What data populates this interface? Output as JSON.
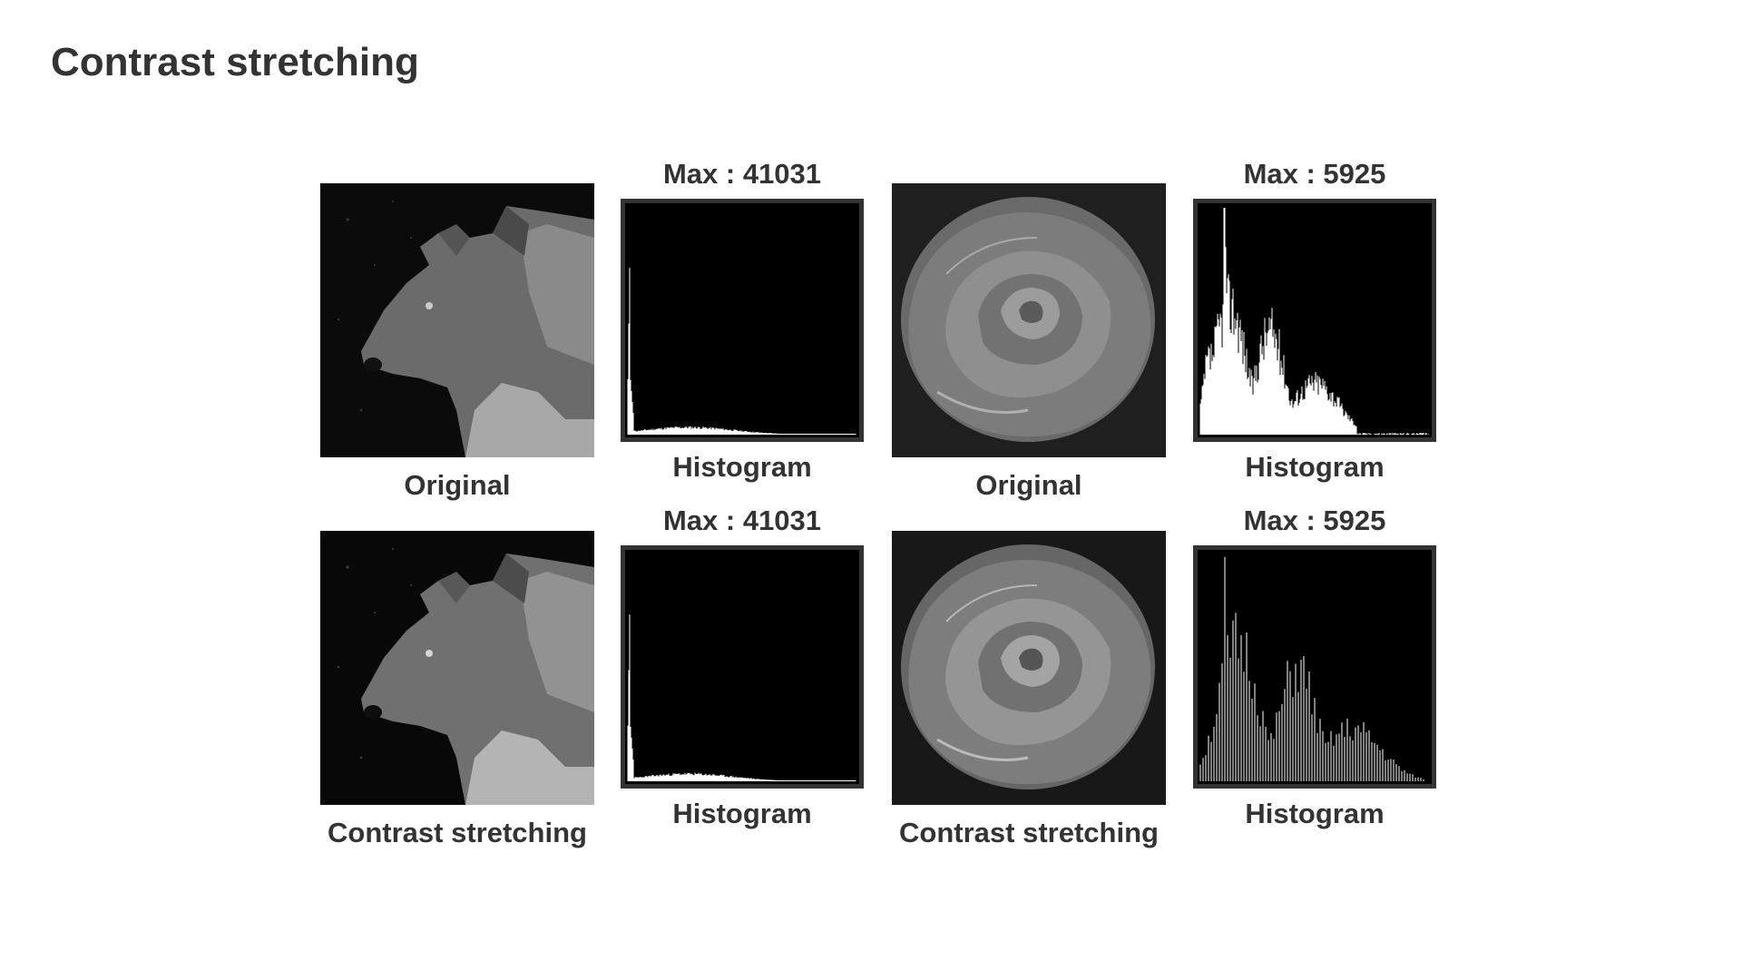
{
  "title": "Contrast stretching",
  "panels": [
    {
      "image_label": "Original",
      "max_label": "Max : 41031",
      "hist_label": "Histogram",
      "subject": "wolf",
      "mode": "original"
    },
    {
      "image_label": "Original",
      "max_label": "Max : 5925",
      "hist_label": "Histogram",
      "subject": "rose",
      "mode": "original"
    },
    {
      "image_label": "Contrast stretching",
      "max_label": "Max : 41031",
      "hist_label": "Histogram",
      "subject": "wolf",
      "mode": "stretched"
    },
    {
      "image_label": "Contrast stretching",
      "max_label": "Max : 5925",
      "hist_label": "Histogram",
      "subject": "rose",
      "mode": "stretched"
    }
  ],
  "colors": {
    "text": "#333333",
    "histogram_bg": "#000000",
    "histogram_bar": "#ffffff",
    "frame": "#333333"
  }
}
